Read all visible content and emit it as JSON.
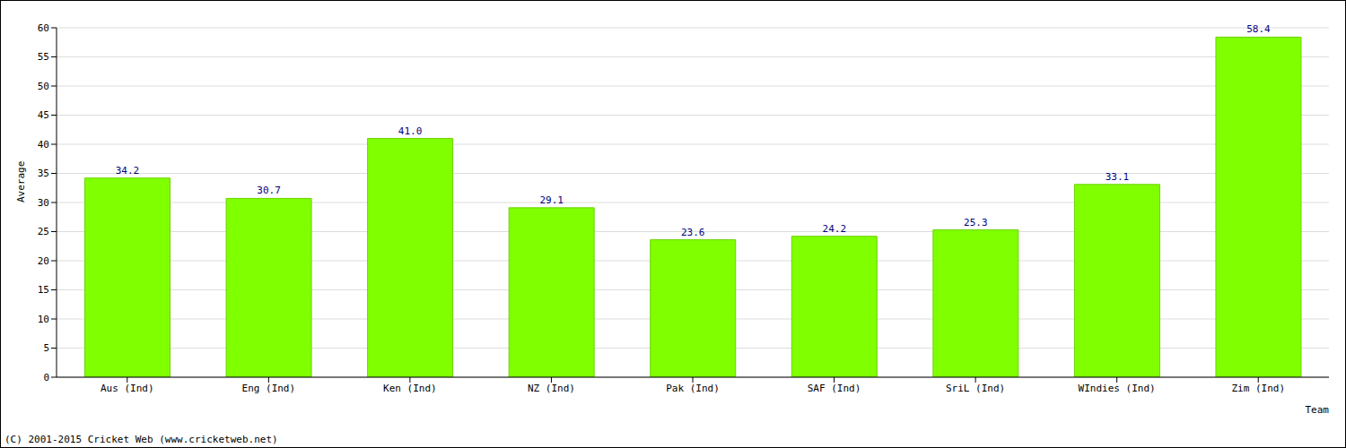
{
  "chart_data": {
    "type": "bar",
    "categories": [
      "Aus (Ind)",
      "Eng (Ind)",
      "Ken (Ind)",
      "NZ (Ind)",
      "Pak (Ind)",
      "SAF (Ind)",
      "SriL (Ind)",
      "WIndies (Ind)",
      "Zim (Ind)"
    ],
    "values": [
      34.2,
      30.7,
      41.0,
      29.1,
      23.6,
      24.2,
      25.3,
      33.1,
      58.4
    ],
    "value_labels": [
      "34.2",
      "30.7",
      "41.0",
      "29.1",
      "23.6",
      "24.2",
      "25.3",
      "33.1",
      "58.4"
    ],
    "color": "#80ff00",
    "x_label": "Team",
    "y_label": "Average",
    "annotation": "(C) 2001-2015 Cricket Web (www.cricketweb.net)",
    "ylim": [
      0,
      60
    ],
    "yticks": [
      0,
      5,
      10,
      15,
      20,
      25,
      30,
      35,
      40,
      45,
      50,
      55,
      60
    ],
    "grid": true,
    "data_labels": true
  }
}
